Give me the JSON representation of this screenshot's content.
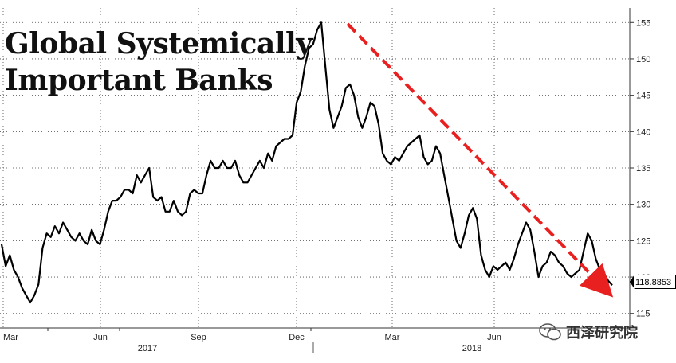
{
  "chart_data": {
    "type": "line",
    "title": "Global Systemically Important Banks",
    "title_lines": [
      "Global Systemically",
      "Important Banks"
    ],
    "ylim": [
      113,
      157
    ],
    "y_ticks": [
      115,
      120,
      125,
      130,
      135,
      140,
      145,
      150,
      155
    ],
    "x_ticks": [
      "Mar",
      "Jun",
      "Sep",
      "Dec",
      "Mar",
      "Jun"
    ],
    "year_labels": [
      "2017",
      "2018"
    ],
    "last_value_label": "118.8853",
    "last_value": 118.8853,
    "trend_color": "#e8201f",
    "series": [
      {
        "values": [
          124.5,
          121.5,
          123.0,
          121.0,
          120.0,
          118.5,
          117.5,
          116.5,
          117.5,
          119.0,
          124.0,
          126.0,
          125.5,
          127.0,
          126.0,
          127.5,
          126.5,
          125.5,
          125.0,
          126.0,
          125.0,
          124.5,
          126.5,
          125.0,
          124.5,
          126.5,
          129.0,
          130.5,
          130.5,
          131.0,
          132.0,
          132.0,
          131.5,
          134.0,
          133.0,
          134.0,
          135.0,
          131.0,
          130.5,
          131.0,
          129.0,
          129.0,
          130.5,
          129.0,
          128.5,
          129.0,
          131.5,
          132.0,
          131.5,
          131.5,
          134.0,
          136.0,
          135.0,
          135.0,
          136.0,
          135.0,
          135.0,
          136.0,
          134.0,
          133.0,
          133.0,
          134.0,
          135.0,
          136.0,
          135.0,
          137.0,
          136.0,
          138.0,
          138.5,
          139.0,
          139.0,
          139.5,
          144.0,
          145.5,
          149.0,
          151.5,
          152.0,
          154.0,
          155.0,
          149.0,
          143.0,
          140.5,
          142.0,
          143.5,
          146.0,
          146.5,
          145.0,
          142.0,
          140.5,
          142.0,
          144.0,
          143.5,
          141.0,
          137.0,
          136.0,
          135.5,
          136.5,
          136.0,
          137.0,
          138.0,
          138.5,
          139.0,
          139.5,
          136.5,
          135.5,
          136.0,
          138.0,
          137.0,
          134.0,
          131.0,
          128.0,
          125.0,
          124.0,
          126.0,
          128.5,
          129.5,
          128.0,
          123.0,
          121.0,
          120.0,
          121.5,
          121.0,
          121.5,
          122.0,
          121.0,
          122.5,
          124.5,
          126.0,
          127.5,
          126.5,
          123.5,
          120.0,
          121.5,
          122.0,
          123.5,
          123.0,
          122.0,
          121.5,
          120.5,
          120.0,
          120.5,
          121.0,
          123.5,
          126.0,
          125.0,
          122.5,
          121.0,
          120.5,
          119.5,
          118.8853
        ]
      }
    ]
  }
}
